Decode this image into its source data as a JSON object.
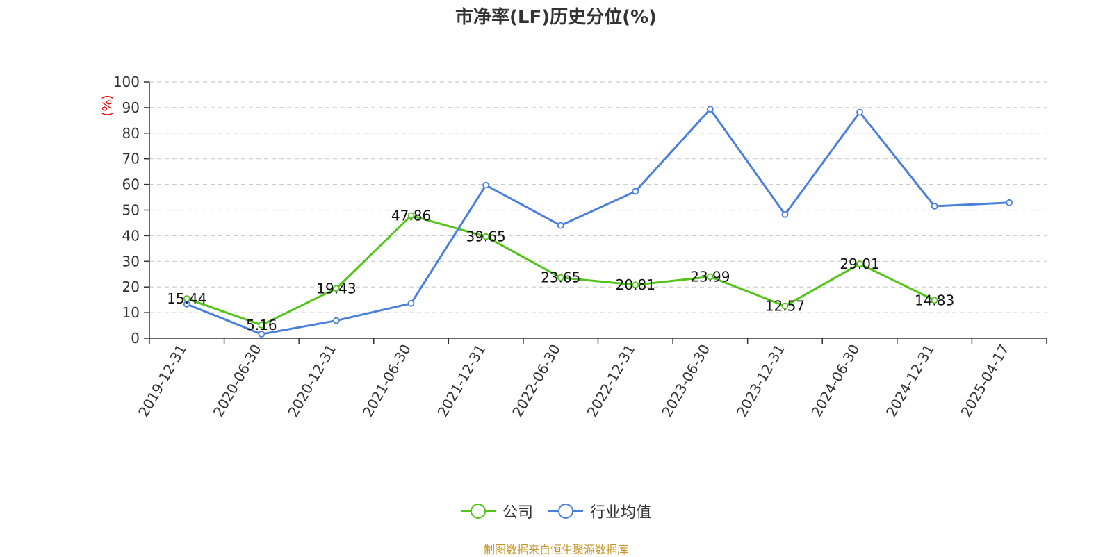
{
  "title": "市净率(LF)历史分位(%)",
  "source": "制图数据来自恒生聚源数据库",
  "chart_data": {
    "type": "line",
    "title": "市净率(LF)历史分位(%)",
    "ylabel": "(%)",
    "ylim": [
      0,
      100
    ],
    "yticks": [
      0,
      10,
      20,
      30,
      40,
      50,
      60,
      70,
      80,
      90,
      100
    ],
    "grid": true,
    "legend_position": "bottom",
    "categories": [
      "2019-12-31",
      "2020-06-30",
      "2020-12-31",
      "2021-06-30",
      "2021-12-31",
      "2022-06-30",
      "2022-12-31",
      "2023-06-30",
      "2023-12-31",
      "2024-06-30",
      "2024-12-31",
      "2025-04-17"
    ],
    "series": [
      {
        "name": "公司",
        "color": "#52c41a",
        "values": [
          15.44,
          5.16,
          19.43,
          47.86,
          39.65,
          23.65,
          20.81,
          23.99,
          12.57,
          29.01,
          14.83,
          null
        ],
        "labels": [
          "15.44",
          "5.16",
          "19.43",
          "47.86",
          "39.65",
          "23.65",
          "20.81",
          "23.99",
          "12.57",
          "29.01",
          "14.83",
          ""
        ]
      },
      {
        "name": "行业均值",
        "color": "#4a7fdc",
        "values": [
          13.3,
          1.6,
          6.9,
          13.6,
          59.7,
          44.0,
          57.3,
          89.4,
          48.3,
          88.2,
          51.5,
          52.9
        ]
      }
    ]
  }
}
